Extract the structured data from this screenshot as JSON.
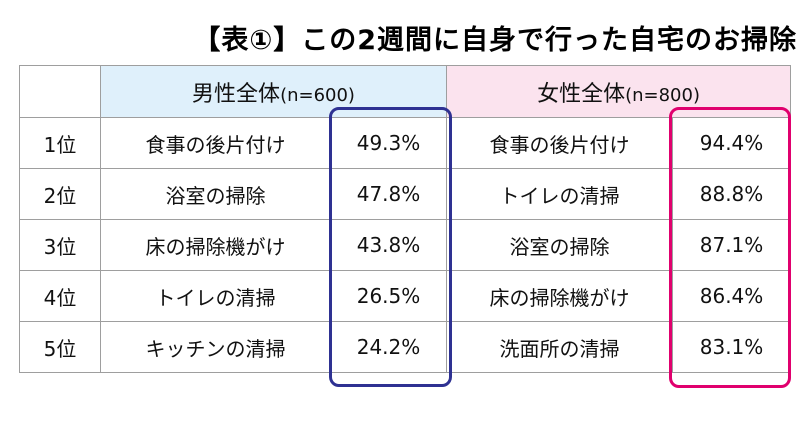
{
  "title": "【表①】この2週間に自身で行った自宅のお掃除",
  "colors": {
    "male_header_bg": "#dff0fb",
    "female_header_bg": "#fbe3ee",
    "male_highlight": "#2e3192",
    "female_highlight": "#e0006e",
    "border": "#9e9e9e"
  },
  "headers": {
    "male": {
      "label": "男性全体",
      "n": "(n=600)"
    },
    "female": {
      "label": "女性全体",
      "n": "(n=800)"
    }
  },
  "ranks": [
    "1位",
    "2位",
    "3位",
    "4位",
    "5位"
  ],
  "male": {
    "items": [
      "食事の後片付け",
      "浴室の掃除",
      "床の掃除機がけ",
      "トイレの清掃",
      "キッチンの清掃"
    ],
    "percents": [
      "49.3%",
      "47.8%",
      "43.8%",
      "26.5%",
      "24.2%"
    ]
  },
  "female": {
    "items": [
      "食事の後片付け",
      "トイレの清掃",
      "浴室の掃除",
      "床の掃除機がけ",
      "洗面所の清掃"
    ],
    "percents": [
      "94.4%",
      "88.8%",
      "87.1%",
      "86.4%",
      "83.1%"
    ]
  },
  "chart_data": {
    "type": "table",
    "title": "【表①】この2週間に自身で行った自宅のお掃除",
    "columns": [
      "",
      "男性全体(n=600)",
      "",
      "女性全体(n=800)",
      ""
    ],
    "rows": [
      {
        "rank": "1位",
        "male_item": "食事の後片付け",
        "male_value": 49.3,
        "female_item": "食事の後片付け",
        "female_value": 94.4
      },
      {
        "rank": "2位",
        "male_item": "浴室の掃除",
        "male_value": 47.8,
        "female_item": "トイレの清掃",
        "female_value": 88.8
      },
      {
        "rank": "3位",
        "male_item": "床の掃除機がけ",
        "male_value": 43.8,
        "female_item": "浴室の掃除",
        "female_value": 87.1
      },
      {
        "rank": "4位",
        "male_item": "トイレの清掃",
        "male_value": 26.5,
        "female_item": "床の掃除機がけ",
        "female_value": 86.4
      },
      {
        "rank": "5位",
        "male_item": "キッチンの清掃",
        "male_value": 24.2,
        "female_item": "洗面所の清掃",
        "female_value": 83.1
      }
    ]
  }
}
